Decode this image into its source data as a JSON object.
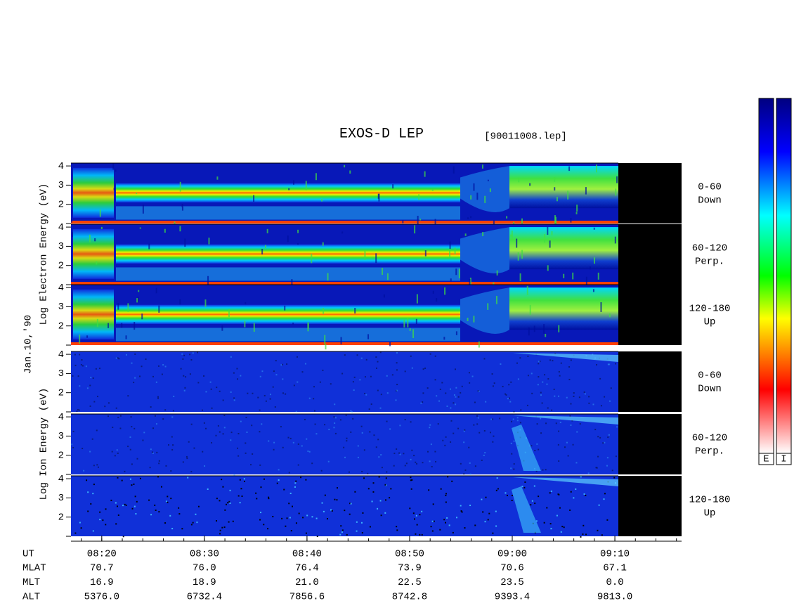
{
  "chart_data": {
    "type": "spectrogram",
    "title": "EXOS-D LEP",
    "file": "[90011008.lep]",
    "date": "Jan.10,'90",
    "xlim": [
      17,
      76.5
    ],
    "xticks": [
      {
        "value": 20,
        "label": "08:20"
      },
      {
        "value": 30,
        "label": "08:30"
      },
      {
        "value": 40,
        "label": "08:40"
      },
      {
        "value": 50,
        "label": "08:50"
      },
      {
        "value": 60,
        "label": "09:00"
      },
      {
        "value": 70,
        "label": "09:10"
      }
    ],
    "ylim": [
      1,
      4.15
    ],
    "yticks": [
      2,
      3,
      4
    ],
    "groups": [
      {
        "label": "Log Electron Energy (eV)",
        "species": "electron",
        "panels": [
          {
            "range": "0-60",
            "direction": "Down"
          },
          {
            "range": "60-120",
            "direction": "Perp."
          },
          {
            "range": "120-180",
            "direction": "Up"
          }
        ]
      },
      {
        "label": "Log Ion Energy (eV)",
        "species": "ion",
        "panels": [
          {
            "range": "0-60",
            "direction": "Down"
          },
          {
            "range": "60-120",
            "direction": "Perp."
          },
          {
            "range": "120-180",
            "direction": "Up"
          }
        ]
      }
    ],
    "orbit": {
      "ut_label": "UT",
      "rows": [
        {
          "name": "MLAT",
          "values": [
            "70.7",
            "76.0",
            "76.4",
            "73.9",
            "70.6",
            "67.1"
          ]
        },
        {
          "name": "MLT",
          "values": [
            "16.9",
            "18.9",
            "21.0",
            "22.5",
            "23.5",
            "0.0"
          ]
        },
        {
          "name": "ALT",
          "values": [
            "5376.0",
            "6732.4",
            "7856.6",
            "8742.8",
            "9393.4",
            "9813.0"
          ]
        }
      ]
    },
    "colorbar_labels": [
      "E",
      "I"
    ]
  }
}
